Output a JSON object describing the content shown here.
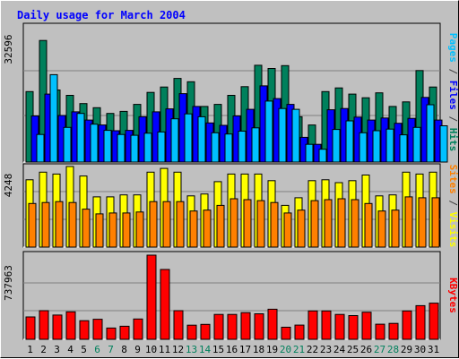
{
  "chart_data": [
    {
      "type": "bar",
      "title": "Daily usage for March 2004",
      "ylabel_parts": [
        {
          "text": "Pages",
          "color": "#00c0ff"
        },
        {
          "text": " / ",
          "color": "#404040"
        },
        {
          "text": "Files",
          "color": "#0000ff"
        },
        {
          "text": " / ",
          "color": "#404040"
        },
        {
          "text": "Hits",
          "color": "#00805c"
        }
      ],
      "ymax_label": "32596",
      "ylim": [
        0,
        32596
      ],
      "categories": [
        "1",
        "2",
        "3",
        "4",
        "5",
        "6",
        "7",
        "8",
        "9",
        "10",
        "11",
        "12",
        "13",
        "14",
        "15",
        "16",
        "17",
        "18",
        "19",
        "20",
        "21",
        "22",
        "23",
        "24",
        "25",
        "26",
        "27",
        "28",
        "29",
        "30",
        "31"
      ],
      "weekend_days": [
        "6",
        "7",
        "13",
        "14",
        "20",
        "21",
        "27",
        "28"
      ],
      "series": [
        {
          "name": "Hits",
          "color": "#00805c",
          "values": [
            17100,
            29500,
            17500,
            16200,
            14200,
            13200,
            11800,
            12300,
            14000,
            16900,
            18200,
            20300,
            19500,
            13500,
            14000,
            16200,
            18300,
            23500,
            22700,
            23400,
            11000,
            9000,
            17100,
            18000,
            16500,
            15600,
            16800,
            13500,
            14600,
            22200,
            18200
          ]
        },
        {
          "name": "Files",
          "color": "#0000ff",
          "values": [
            11200,
            16500,
            11300,
            12200,
            10200,
            9000,
            7600,
            7700,
            11000,
            12200,
            12900,
            16600,
            13500,
            9500,
            8900,
            11200,
            12800,
            18500,
            15400,
            14000,
            6000,
            4300,
            12700,
            13000,
            10900,
            10200,
            10700,
            9400,
            10600,
            15700,
            10200
          ]
        },
        {
          "name": "Pages",
          "color": "#00c0ff",
          "values": [
            6700,
            21200,
            8400,
            11800,
            9200,
            7700,
            6700,
            6500,
            7000,
            7300,
            10500,
            11700,
            11000,
            7100,
            6800,
            7500,
            8300,
            14800,
            13000,
            12800,
            4300,
            3100,
            7900,
            10000,
            7100,
            7600,
            8000,
            6600,
            8400,
            13900,
            8800
          ]
        }
      ]
    },
    {
      "type": "bar",
      "ylabel_parts": [
        {
          "text": "Sites",
          "color": "#ff8000"
        },
        {
          "text": " / ",
          "color": "#404040"
        },
        {
          "text": "Visits",
          "color": "#ffff00"
        }
      ],
      "ymax_label": "4248",
      "ylim": [
        0,
        4248
      ],
      "categories": [
        "1",
        "2",
        "3",
        "4",
        "5",
        "6",
        "7",
        "8",
        "9",
        "10",
        "11",
        "12",
        "13",
        "14",
        "15",
        "16",
        "17",
        "18",
        "19",
        "20",
        "21",
        "22",
        "23",
        "24",
        "25",
        "26",
        "27",
        "28",
        "29",
        "30",
        "31"
      ],
      "series": [
        {
          "name": "Visits",
          "color": "#ffff00",
          "values": [
            3550,
            3950,
            3850,
            4248,
            3750,
            2650,
            2650,
            2750,
            2750,
            3950,
            4150,
            3950,
            2700,
            2800,
            3450,
            3850,
            3850,
            3850,
            3500,
            2200,
            2600,
            3500,
            3550,
            3400,
            3500,
            3800,
            2700,
            2750,
            3950,
            3850,
            3950
          ]
        },
        {
          "name": "Sites",
          "color": "#ff8000",
          "values": [
            2300,
            2350,
            2400,
            2350,
            2000,
            1750,
            1800,
            1800,
            1850,
            2400,
            2400,
            2400,
            1900,
            1950,
            2200,
            2550,
            2500,
            2450,
            2350,
            1800,
            1950,
            2450,
            2500,
            2550,
            2500,
            2300,
            1900,
            1950,
            2650,
            2600,
            2600
          ]
        }
      ]
    },
    {
      "type": "bar",
      "ylabel_parts": [
        {
          "text": "KBytes",
          "color": "#ff0000"
        }
      ],
      "ymax_label": "737963",
      "ylim": [
        0,
        737963
      ],
      "categories": [
        "1",
        "2",
        "3",
        "4",
        "5",
        "6",
        "7",
        "8",
        "9",
        "10",
        "11",
        "12",
        "13",
        "14",
        "15",
        "16",
        "17",
        "18",
        "19",
        "20",
        "21",
        "22",
        "23",
        "24",
        "25",
        "26",
        "27",
        "28",
        "29",
        "30",
        "31"
      ],
      "series": [
        {
          "name": "KBytes",
          "color": "#ff0000",
          "values": [
            196000,
            251000,
            213000,
            241000,
            163000,
            176000,
            99000,
            115000,
            178000,
            737963,
            612000,
            251000,
            124000,
            131000,
            218000,
            218000,
            234000,
            224000,
            264000,
            106000,
            125000,
            249000,
            249000,
            218000,
            208000,
            238000,
            133000,
            140000,
            249000,
            295000,
            317000
          ]
        }
      ]
    }
  ]
}
